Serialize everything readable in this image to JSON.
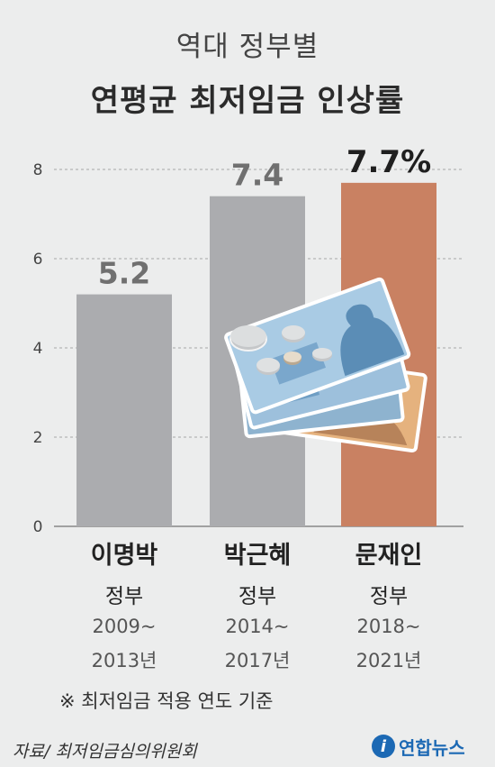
{
  "title_line1": "역대 정부별",
  "title_line2": "연평균 최저임금 인상률",
  "chart_data": {
    "type": "bar",
    "categories": [
      "이명박",
      "박근혜",
      "문재인"
    ],
    "category_sub": [
      "정부",
      "정부",
      "정부"
    ],
    "periods": [
      [
        "2009~",
        "2013년"
      ],
      [
        "2014~",
        "2017년"
      ],
      [
        "2018~",
        "2021년"
      ]
    ],
    "values": [
      5.2,
      7.4,
      7.7
    ],
    "value_labels": [
      "5.2",
      "7.4",
      "7.7%"
    ],
    "colors": [
      "#abacaf",
      "#abacaf",
      "#c98162"
    ],
    "ylim": [
      0,
      8
    ],
    "yticks": [
      0,
      2,
      4,
      6,
      8
    ],
    "grid": true,
    "legend": "none"
  },
  "footnote": "※ 최저임금 적용 연도 기준",
  "source": "자료/ 최저임금심의위원회",
  "logo": {
    "mark": "i",
    "text": "연합뉴스",
    "color": "#1c69b4"
  },
  "illustration_icon": "money-bills-coins-icon"
}
